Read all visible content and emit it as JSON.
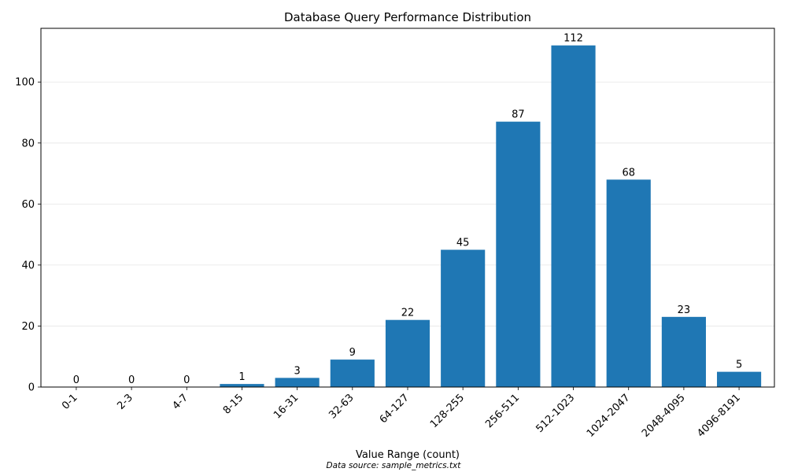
{
  "chart_data": {
    "type": "bar",
    "title": "Database Query Performance Distribution",
    "xlabel": "Value Range (count)",
    "ylabel": "",
    "categories": [
      "0-1",
      "2-3",
      "4-7",
      "8-15",
      "16-31",
      "32-63",
      "64-127",
      "128-255",
      "256-511",
      "512-1023",
      "1024-2047",
      "2048-4095",
      "4096-8191"
    ],
    "values": [
      0,
      0,
      0,
      1,
      3,
      9,
      22,
      45,
      87,
      112,
      68,
      23,
      5
    ],
    "data_labels": [
      "0",
      "0",
      "0",
      "1",
      "3",
      "9",
      "22",
      "45",
      "87",
      "112",
      "68",
      "23",
      "5"
    ],
    "y_ticks": [
      0,
      20,
      40,
      60,
      80,
      100
    ],
    "ylim": [
      0,
      117.6
    ],
    "grid": "y",
    "bar_color": "#1f77b4",
    "source_note": "Data source: sample_metrics.txt"
  }
}
